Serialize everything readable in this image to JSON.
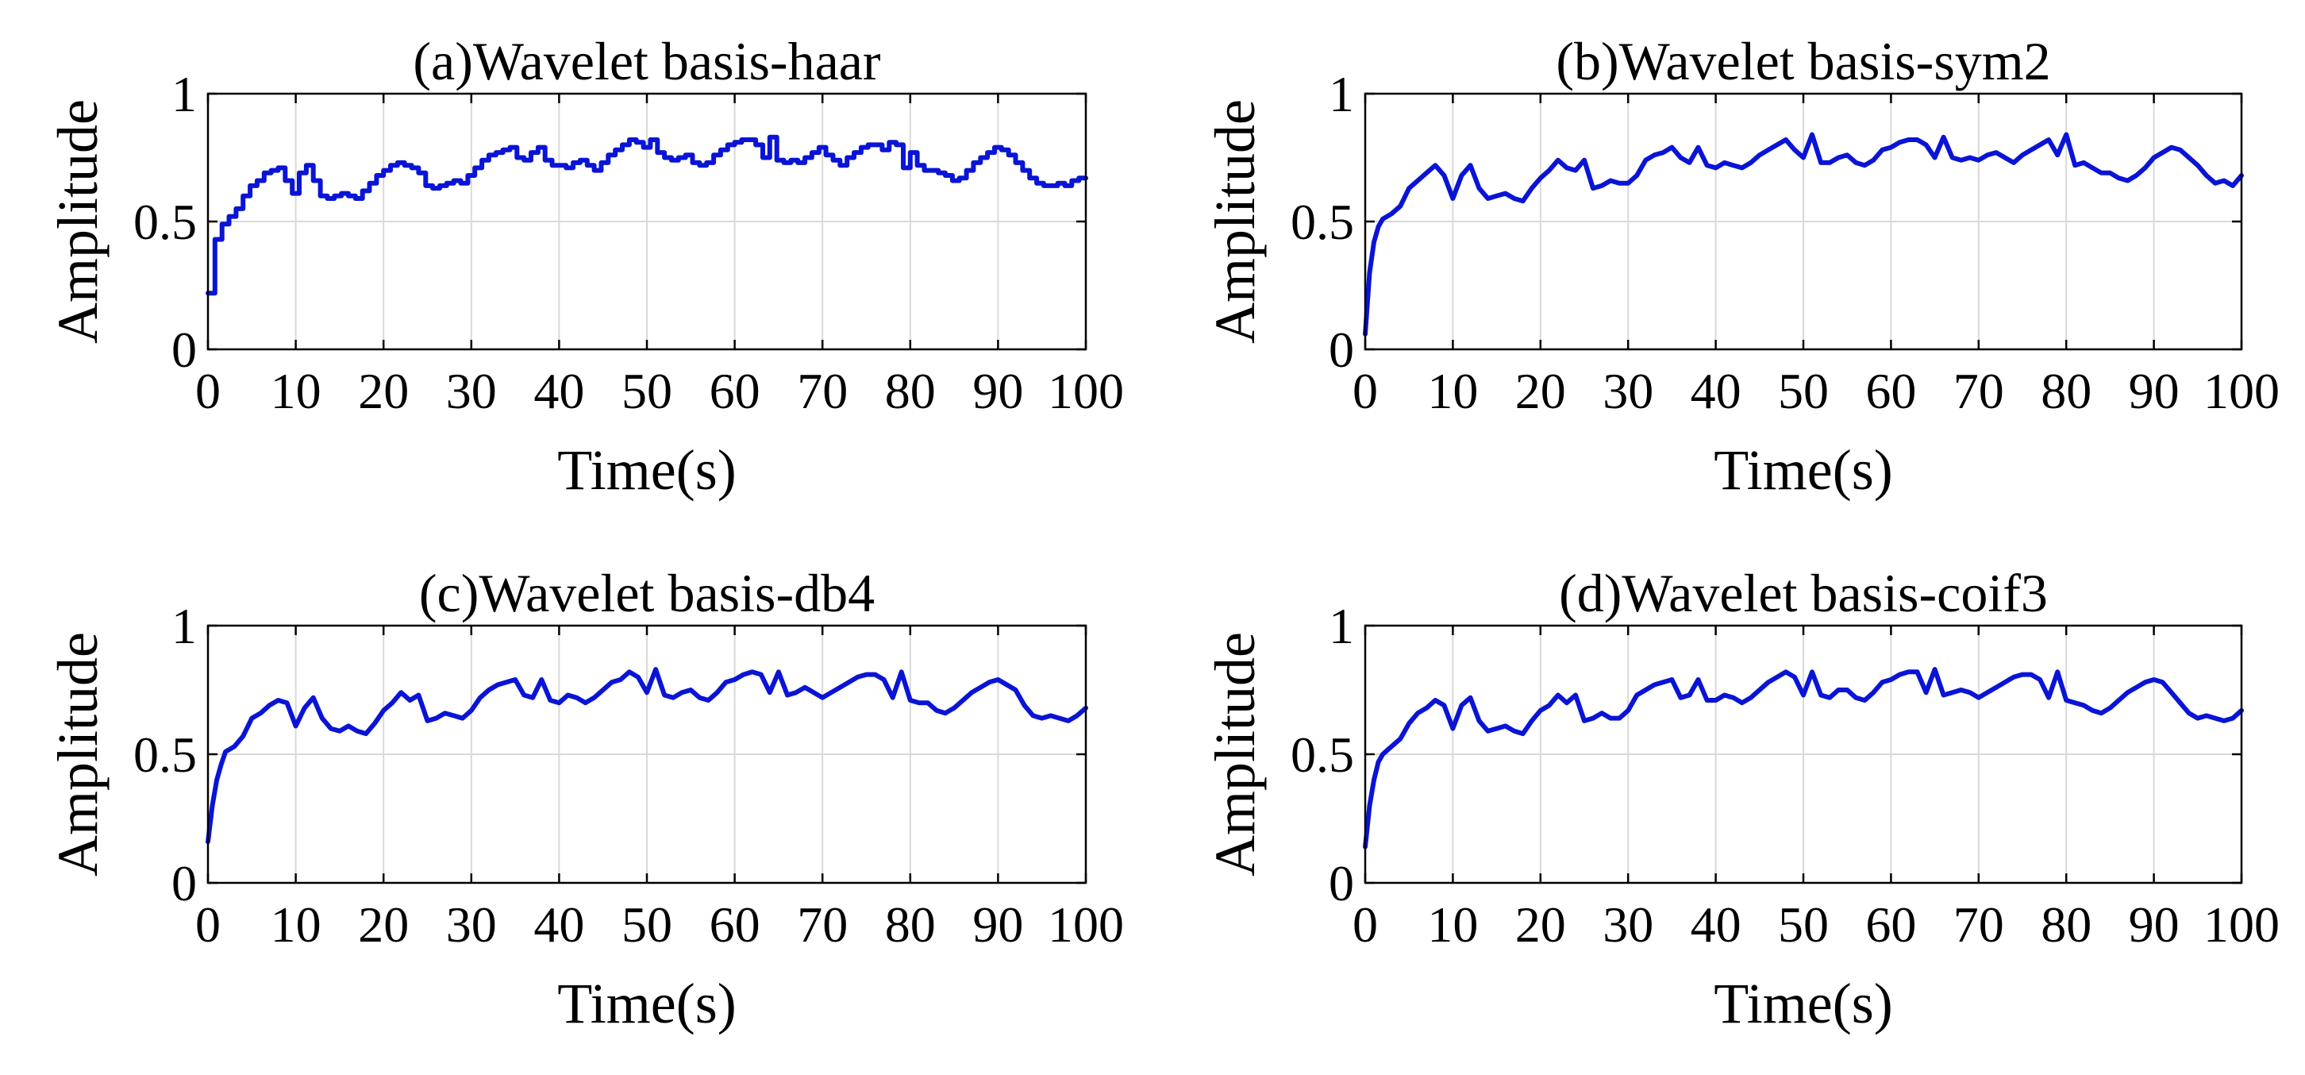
{
  "figure": {
    "line_color": "#0a14d6"
  },
  "chart_data": [
    {
      "type": "line",
      "title": "(a)Wavelet basis-haar",
      "xlabel": "Time(s)",
      "ylabel": "Amplitude",
      "xlim": [
        0,
        100
      ],
      "ylim": [
        0,
        1
      ],
      "xticks": [
        "0",
        "10",
        "20",
        "30",
        "40",
        "50",
        "60",
        "70",
        "80",
        "90",
        "100"
      ],
      "yticks": [
        "0",
        "0.5",
        "1"
      ],
      "grid": true,
      "step": true,
      "series": [
        {
          "name": "haar",
          "x": [
            0.0,
            0.8,
            1.6,
            2.4,
            3.2,
            4.0,
            4.8,
            5.6,
            6.4,
            7.2,
            8.0,
            8.8,
            9.6,
            10.4,
            11.2,
            12.0,
            12.8,
            13.6,
            14.4,
            15.2,
            16.0,
            16.8,
            17.6,
            18.4,
            19.2,
            20.0,
            20.8,
            21.6,
            22.4,
            23.2,
            24.0,
            24.8,
            25.6,
            26.4,
            27.2,
            28.0,
            28.8,
            29.6,
            30.4,
            31.2,
            32.0,
            32.8,
            33.6,
            34.4,
            35.2,
            36.0,
            36.8,
            37.6,
            38.4,
            39.2,
            40.0,
            40.8,
            41.6,
            42.4,
            43.2,
            44.0,
            44.8,
            45.6,
            46.4,
            47.2,
            48.0,
            48.8,
            49.6,
            50.4,
            51.2,
            52.0,
            52.8,
            53.6,
            54.4,
            55.2,
            56.0,
            56.8,
            57.6,
            58.4,
            59.2,
            60.0,
            60.8,
            61.6,
            62.4,
            63.2,
            64.0,
            64.8,
            65.6,
            66.4,
            67.2,
            68.0,
            68.8,
            69.6,
            70.4,
            71.2,
            72.0,
            72.8,
            73.6,
            74.4,
            75.2,
            76.0,
            76.8,
            77.6,
            78.4,
            79.2,
            80.0,
            80.8,
            81.6,
            82.4,
            83.2,
            84.0,
            84.8,
            85.6,
            86.4,
            87.2,
            88.0,
            88.8,
            89.6,
            90.4,
            91.2,
            92.0,
            92.8,
            93.6,
            94.4,
            95.2,
            96.0,
            96.8,
            97.6,
            98.4,
            99.2,
            100.0
          ],
          "values": [
            0.22,
            0.43,
            0.49,
            0.52,
            0.55,
            0.6,
            0.64,
            0.66,
            0.69,
            0.7,
            0.71,
            0.66,
            0.61,
            0.69,
            0.72,
            0.66,
            0.6,
            0.59,
            0.6,
            0.61,
            0.6,
            0.59,
            0.62,
            0.65,
            0.68,
            0.7,
            0.72,
            0.73,
            0.72,
            0.71,
            0.69,
            0.64,
            0.63,
            0.64,
            0.65,
            0.66,
            0.65,
            0.68,
            0.71,
            0.74,
            0.76,
            0.77,
            0.78,
            0.79,
            0.75,
            0.74,
            0.77,
            0.79,
            0.74,
            0.72,
            0.72,
            0.71,
            0.73,
            0.74,
            0.72,
            0.7,
            0.73,
            0.76,
            0.78,
            0.8,
            0.82,
            0.81,
            0.79,
            0.82,
            0.77,
            0.75,
            0.74,
            0.75,
            0.76,
            0.73,
            0.72,
            0.73,
            0.76,
            0.78,
            0.8,
            0.81,
            0.82,
            0.82,
            0.8,
            0.75,
            0.83,
            0.74,
            0.73,
            0.74,
            0.73,
            0.75,
            0.77,
            0.79,
            0.76,
            0.74,
            0.72,
            0.75,
            0.77,
            0.79,
            0.8,
            0.8,
            0.78,
            0.81,
            0.8,
            0.71,
            0.77,
            0.72,
            0.7,
            0.7,
            0.69,
            0.68,
            0.66,
            0.67,
            0.7,
            0.73,
            0.75,
            0.77,
            0.79,
            0.78,
            0.76,
            0.73,
            0.7,
            0.67,
            0.65,
            0.64,
            0.64,
            0.65,
            0.64,
            0.66,
            0.67,
            0.67
          ]
        }
      ]
    },
    {
      "type": "line",
      "title": "(b)Wavelet basis-sym2",
      "xlabel": "Time(s)",
      "ylabel": "Amplitude",
      "xlim": [
        0,
        100
      ],
      "ylim": [
        0,
        1
      ],
      "xticks": [
        "0",
        "10",
        "20",
        "30",
        "40",
        "50",
        "60",
        "70",
        "80",
        "90",
        "100"
      ],
      "yticks": [
        "0",
        "0.5",
        "1"
      ],
      "grid": true,
      "step": false,
      "series": [
        {
          "name": "sym2",
          "x": [
            0.0,
            0.5,
            1.0,
            1.5,
            2.0,
            3.0,
            4.0,
            5.0,
            6.0,
            7.0,
            8.0,
            9.0,
            10.0,
            11.0,
            12.0,
            13.0,
            14.0,
            15.0,
            16.0,
            17.0,
            18.0,
            19.0,
            20.0,
            21.0,
            22.0,
            23.0,
            24.0,
            25.0,
            26.0,
            27.0,
            28.0,
            29.0,
            30.0,
            31.0,
            32.0,
            33.0,
            34.0,
            35.0,
            36.0,
            37.0,
            38.0,
            39.0,
            40.0,
            41.0,
            42.0,
            43.0,
            44.0,
            45.0,
            46.0,
            47.0,
            48.0,
            49.0,
            50.0,
            51.0,
            52.0,
            53.0,
            54.0,
            55.0,
            56.0,
            57.0,
            58.0,
            59.0,
            60.0,
            61.0,
            62.0,
            63.0,
            64.0,
            65.0,
            66.0,
            67.0,
            68.0,
            69.0,
            70.0,
            71.0,
            72.0,
            73.0,
            74.0,
            75.0,
            76.0,
            77.0,
            78.0,
            79.0,
            80.0,
            81.0,
            82.0,
            83.0,
            84.0,
            85.0,
            86.0,
            87.0,
            88.0,
            89.0,
            90.0,
            91.0,
            92.0,
            93.0,
            94.0,
            95.0,
            96.0,
            97.0,
            98.0,
            99.0,
            100.0
          ],
          "values": [
            0.06,
            0.3,
            0.42,
            0.48,
            0.51,
            0.53,
            0.56,
            0.63,
            0.66,
            0.69,
            0.72,
            0.68,
            0.59,
            0.68,
            0.72,
            0.63,
            0.59,
            0.6,
            0.61,
            0.59,
            0.58,
            0.63,
            0.67,
            0.7,
            0.74,
            0.71,
            0.7,
            0.74,
            0.63,
            0.64,
            0.66,
            0.65,
            0.65,
            0.68,
            0.74,
            0.76,
            0.77,
            0.79,
            0.75,
            0.73,
            0.79,
            0.72,
            0.71,
            0.73,
            0.72,
            0.71,
            0.73,
            0.76,
            0.78,
            0.8,
            0.82,
            0.78,
            0.75,
            0.84,
            0.73,
            0.73,
            0.75,
            0.76,
            0.73,
            0.72,
            0.74,
            0.78,
            0.79,
            0.81,
            0.82,
            0.82,
            0.8,
            0.75,
            0.83,
            0.75,
            0.74,
            0.75,
            0.74,
            0.76,
            0.77,
            0.75,
            0.73,
            0.76,
            0.78,
            0.8,
            0.82,
            0.76,
            0.84,
            0.72,
            0.73,
            0.71,
            0.69,
            0.69,
            0.67,
            0.66,
            0.68,
            0.71,
            0.75,
            0.77,
            0.79,
            0.78,
            0.75,
            0.72,
            0.68,
            0.65,
            0.66,
            0.64,
            0.68
          ]
        }
      ]
    },
    {
      "type": "line",
      "title": "(c)Wavelet basis-db4",
      "xlabel": "Time(s)",
      "ylabel": "Amplitude",
      "xlim": [
        0,
        100
      ],
      "ylim": [
        0,
        1
      ],
      "xticks": [
        "0",
        "10",
        "20",
        "30",
        "40",
        "50",
        "60",
        "70",
        "80",
        "90",
        "100"
      ],
      "yticks": [
        "0",
        "0.5",
        "1"
      ],
      "grid": true,
      "step": false,
      "series": [
        {
          "name": "db4",
          "x": [
            0.0,
            0.5,
            1.0,
            1.5,
            2.0,
            3.0,
            4.0,
            5.0,
            6.0,
            7.0,
            8.0,
            9.0,
            10.0,
            11.0,
            12.0,
            13.0,
            14.0,
            15.0,
            16.0,
            17.0,
            18.0,
            19.0,
            20.0,
            21.0,
            22.0,
            23.0,
            24.0,
            25.0,
            26.0,
            27.0,
            28.0,
            29.0,
            30.0,
            31.0,
            32.0,
            33.0,
            34.0,
            35.0,
            36.0,
            37.0,
            38.0,
            39.0,
            40.0,
            41.0,
            42.0,
            43.0,
            44.0,
            45.0,
            46.0,
            47.0,
            48.0,
            49.0,
            50.0,
            51.0,
            52.0,
            53.0,
            54.0,
            55.0,
            56.0,
            57.0,
            58.0,
            59.0,
            60.0,
            61.0,
            62.0,
            63.0,
            64.0,
            65.0,
            66.0,
            67.0,
            68.0,
            69.0,
            70.0,
            71.0,
            72.0,
            73.0,
            74.0,
            75.0,
            76.0,
            77.0,
            78.0,
            79.0,
            80.0,
            81.0,
            82.0,
            83.0,
            84.0,
            85.0,
            86.0,
            87.0,
            88.0,
            89.0,
            90.0,
            91.0,
            92.0,
            93.0,
            94.0,
            95.0,
            96.0,
            97.0,
            98.0,
            99.0,
            100.0
          ],
          "values": [
            0.16,
            0.3,
            0.4,
            0.46,
            0.51,
            0.53,
            0.57,
            0.64,
            0.66,
            0.69,
            0.71,
            0.7,
            0.61,
            0.68,
            0.72,
            0.64,
            0.6,
            0.59,
            0.61,
            0.59,
            0.58,
            0.62,
            0.67,
            0.7,
            0.74,
            0.71,
            0.73,
            0.63,
            0.64,
            0.66,
            0.65,
            0.64,
            0.67,
            0.72,
            0.75,
            0.77,
            0.78,
            0.79,
            0.73,
            0.72,
            0.79,
            0.71,
            0.7,
            0.73,
            0.72,
            0.7,
            0.72,
            0.75,
            0.78,
            0.79,
            0.82,
            0.8,
            0.74,
            0.83,
            0.73,
            0.72,
            0.74,
            0.75,
            0.72,
            0.71,
            0.74,
            0.78,
            0.79,
            0.81,
            0.82,
            0.81,
            0.74,
            0.82,
            0.73,
            0.74,
            0.76,
            0.74,
            0.72,
            0.74,
            0.76,
            0.78,
            0.8,
            0.81,
            0.81,
            0.79,
            0.72,
            0.82,
            0.71,
            0.7,
            0.7,
            0.67,
            0.66,
            0.68,
            0.71,
            0.74,
            0.76,
            0.78,
            0.79,
            0.77,
            0.75,
            0.69,
            0.65,
            0.64,
            0.65,
            0.64,
            0.63,
            0.65,
            0.68
          ]
        }
      ]
    },
    {
      "type": "line",
      "title": "(d)Wavelet basis-coif3",
      "xlabel": "Time(s)",
      "ylabel": "Amplitude",
      "xlim": [
        0,
        100
      ],
      "ylim": [
        0,
        1
      ],
      "xticks": [
        "0",
        "10",
        "20",
        "30",
        "40",
        "50",
        "60",
        "70",
        "80",
        "90",
        "100"
      ],
      "yticks": [
        "0",
        "0.5",
        "1"
      ],
      "grid": true,
      "step": false,
      "series": [
        {
          "name": "coif3",
          "x": [
            0.0,
            0.5,
            1.0,
            1.5,
            2.0,
            3.0,
            4.0,
            5.0,
            6.0,
            7.0,
            8.0,
            9.0,
            10.0,
            11.0,
            12.0,
            13.0,
            14.0,
            15.0,
            16.0,
            17.0,
            18.0,
            19.0,
            20.0,
            21.0,
            22.0,
            23.0,
            24.0,
            25.0,
            26.0,
            27.0,
            28.0,
            29.0,
            30.0,
            31.0,
            32.0,
            33.0,
            34.0,
            35.0,
            36.0,
            37.0,
            38.0,
            39.0,
            40.0,
            41.0,
            42.0,
            43.0,
            44.0,
            45.0,
            46.0,
            47.0,
            48.0,
            49.0,
            50.0,
            51.0,
            52.0,
            53.0,
            54.0,
            55.0,
            56.0,
            57.0,
            58.0,
            59.0,
            60.0,
            61.0,
            62.0,
            63.0,
            64.0,
            65.0,
            66.0,
            67.0,
            68.0,
            69.0,
            70.0,
            71.0,
            72.0,
            73.0,
            74.0,
            75.0,
            76.0,
            77.0,
            78.0,
            79.0,
            80.0,
            81.0,
            82.0,
            83.0,
            84.0,
            85.0,
            86.0,
            87.0,
            88.0,
            89.0,
            90.0,
            91.0,
            92.0,
            93.0,
            94.0,
            95.0,
            96.0,
            97.0,
            98.0,
            99.0,
            100.0
          ],
          "values": [
            0.14,
            0.3,
            0.4,
            0.47,
            0.5,
            0.53,
            0.56,
            0.62,
            0.66,
            0.68,
            0.71,
            0.69,
            0.6,
            0.69,
            0.72,
            0.63,
            0.59,
            0.6,
            0.61,
            0.59,
            0.58,
            0.63,
            0.67,
            0.69,
            0.73,
            0.7,
            0.73,
            0.63,
            0.64,
            0.66,
            0.64,
            0.64,
            0.67,
            0.73,
            0.75,
            0.77,
            0.78,
            0.79,
            0.72,
            0.73,
            0.79,
            0.71,
            0.71,
            0.73,
            0.72,
            0.7,
            0.72,
            0.75,
            0.78,
            0.8,
            0.82,
            0.8,
            0.73,
            0.82,
            0.73,
            0.72,
            0.75,
            0.75,
            0.72,
            0.71,
            0.74,
            0.78,
            0.79,
            0.81,
            0.82,
            0.82,
            0.74,
            0.83,
            0.73,
            0.74,
            0.75,
            0.74,
            0.72,
            0.74,
            0.76,
            0.78,
            0.8,
            0.81,
            0.81,
            0.79,
            0.72,
            0.82,
            0.71,
            0.7,
            0.69,
            0.67,
            0.66,
            0.68,
            0.71,
            0.74,
            0.76,
            0.78,
            0.79,
            0.78,
            0.74,
            0.7,
            0.66,
            0.64,
            0.65,
            0.64,
            0.63,
            0.64,
            0.67
          ]
        }
      ]
    }
  ]
}
